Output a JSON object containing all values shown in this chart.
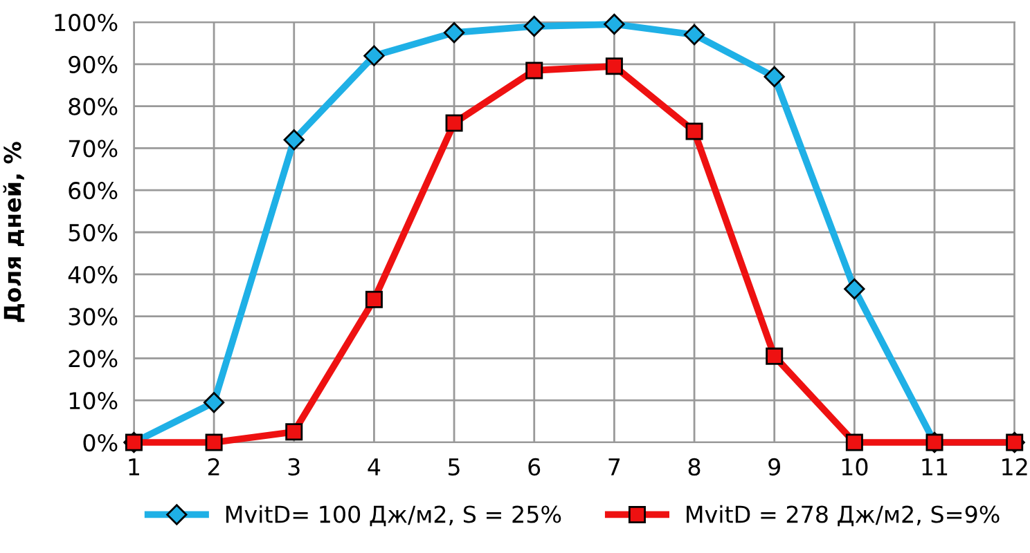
{
  "chart_data": {
    "type": "line",
    "ylabel": "Доля дней, %",
    "x": [
      1,
      2,
      3,
      4,
      5,
      6,
      7,
      8,
      9,
      10,
      11,
      12
    ],
    "xlim": [
      1,
      12
    ],
    "xticks": [
      1,
      2,
      3,
      4,
      5,
      6,
      7,
      8,
      9,
      10,
      11,
      12
    ],
    "ylim": [
      0,
      100
    ],
    "yticks": [
      {
        "value": 0,
        "label": "0%"
      },
      {
        "value": 10,
        "label": "10%"
      },
      {
        "value": 20,
        "label": "20%"
      },
      {
        "value": 30,
        "label": "30%"
      },
      {
        "value": 40,
        "label": "40%"
      },
      {
        "value": 50,
        "label": "50%"
      },
      {
        "value": 60,
        "label": "60%"
      },
      {
        "value": 70,
        "label": "70%"
      },
      {
        "value": 80,
        "label": "80%"
      },
      {
        "value": 90,
        "label": "90%"
      },
      {
        "value": 100,
        "label": "100%"
      }
    ],
    "grid": true,
    "legend": "bottom",
    "series": [
      {
        "name": "MvitD= 100 Дж/м2, S = 25%",
        "color": "#1fb0e6",
        "marker": "diamond",
        "values": [
          0,
          9.5,
          72,
          92,
          97.5,
          99,
          99.5,
          97,
          87,
          36.5,
          0,
          0
        ]
      },
      {
        "name": "MvitD = 278 Дж/м2, S=9%",
        "color": "#ee1111",
        "marker": "square",
        "values": [
          0,
          0,
          2.5,
          34,
          76,
          88.5,
          89.5,
          74,
          20.5,
          0,
          0,
          0
        ]
      }
    ]
  }
}
